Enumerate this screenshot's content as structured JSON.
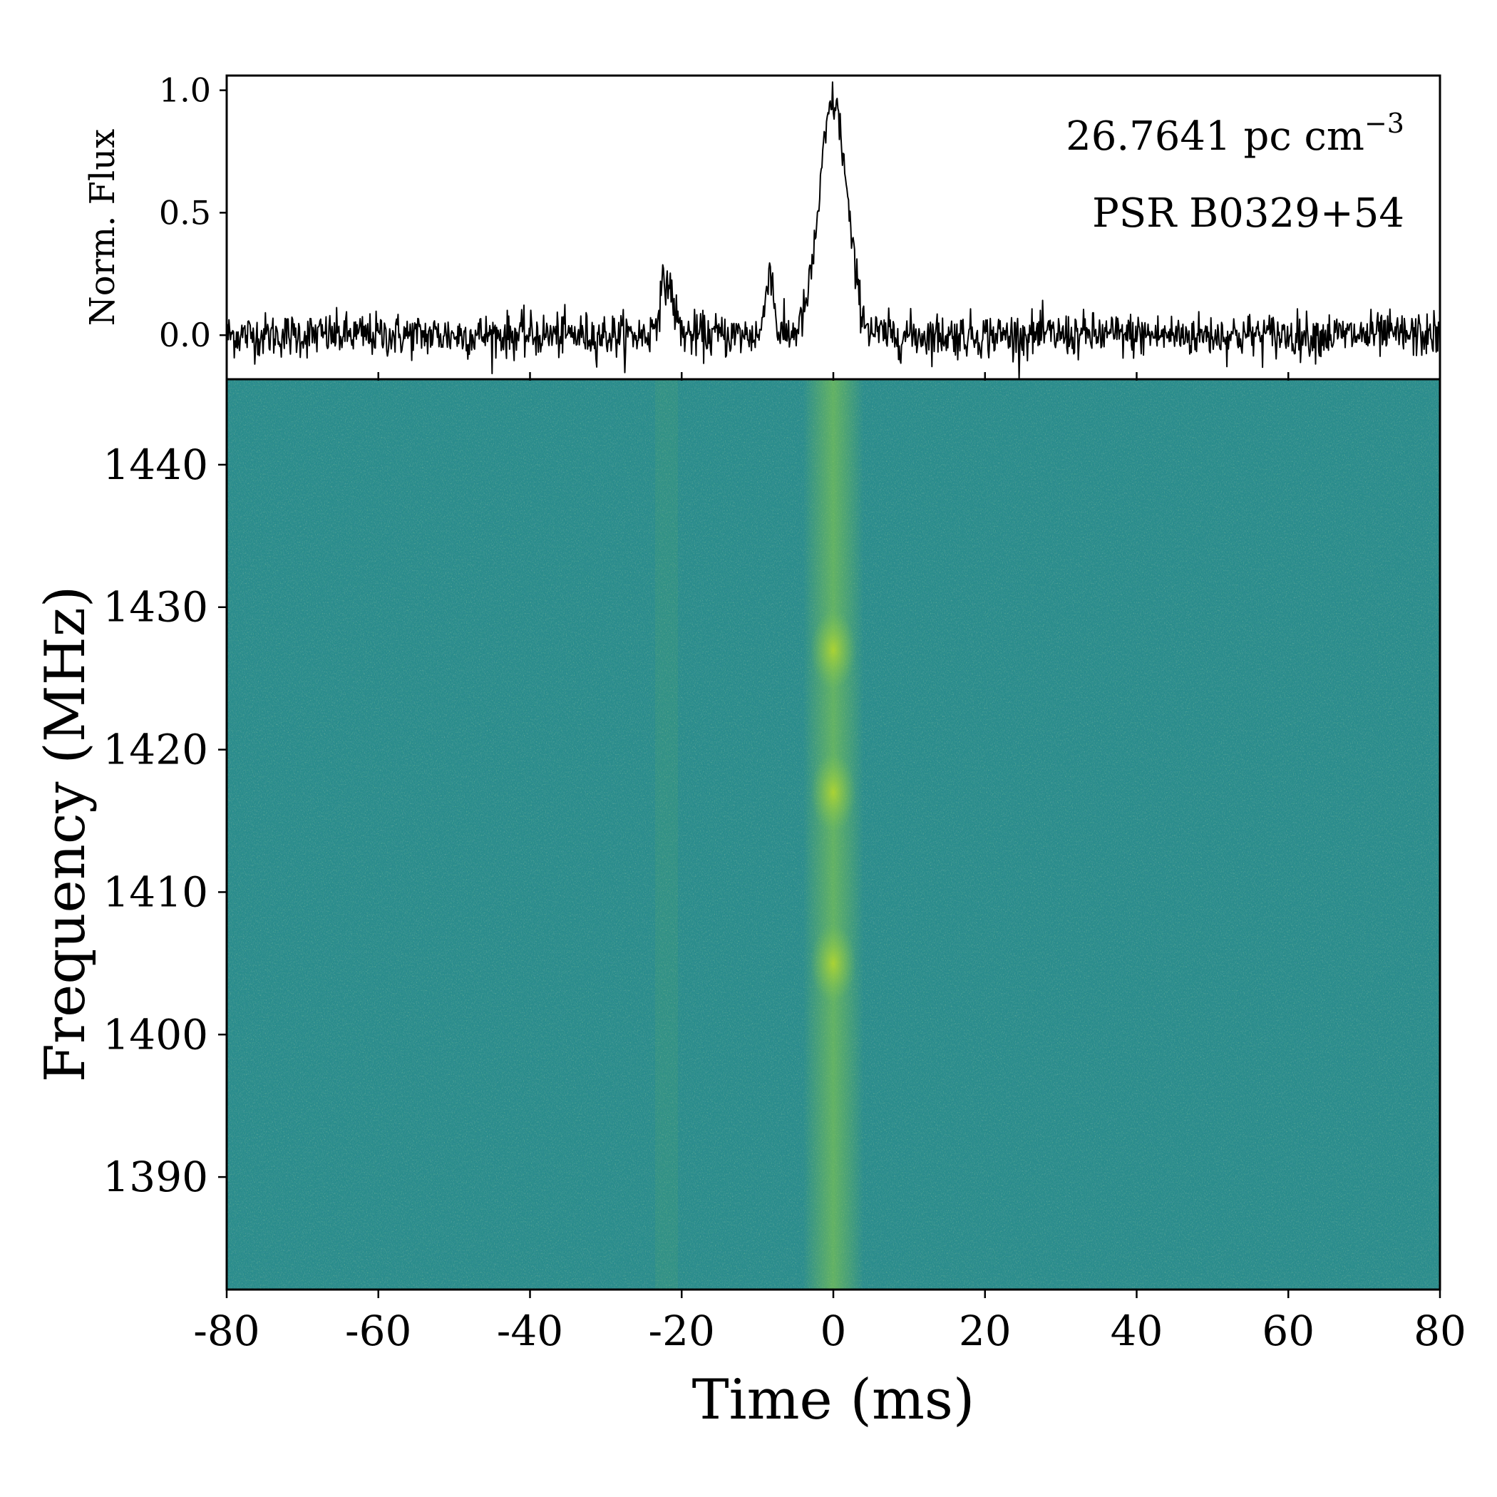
{
  "chart_data": [
    {
      "type": "line",
      "panel": "top",
      "title": "",
      "xlabel": "",
      "ylabel": "Norm. Flux",
      "xlim": [
        -80,
        80
      ],
      "ylim": [
        -0.18,
        1.06
      ],
      "yticks": [
        0.0,
        0.5,
        1.0
      ],
      "ytick_labels": [
        "0.0",
        "0.5",
        "1.0"
      ],
      "annotations": {
        "dm_value": "26.7641 pc cm",
        "dm_superscript": "−3",
        "source": "PSR B0329+54"
      },
      "components": [
        {
          "center_ms": 0.0,
          "amplitude": 0.95,
          "width_ms": 1.8
        },
        {
          "center_ms": -22.0,
          "amplitude": 0.22,
          "width_ms": 0.9
        },
        {
          "center_ms": -8.4,
          "amplitude": 0.28,
          "width_ms": 0.5
        }
      ],
      "noise_sigma": 0.045
    },
    {
      "type": "heatmap",
      "panel": "bottom",
      "title": "",
      "xlabel": "Time (ms)",
      "ylabel": "Frequency (MHz)",
      "xlim": [
        -80,
        80
      ],
      "ylim": [
        1382.1,
        1446.0
      ],
      "xticks": [
        -80,
        -60,
        -40,
        -20,
        0,
        20,
        40,
        60,
        80
      ],
      "xtick_labels": [
        "-80",
        "-60",
        "-40",
        "-20",
        "0",
        "20",
        "40",
        "60",
        "80"
      ],
      "yticks": [
        1390,
        1400,
        1410,
        1420,
        1430,
        1440
      ],
      "ytick_labels": [
        "1390",
        "1400",
        "1410",
        "1420",
        "1430",
        "1440"
      ],
      "colormap": "viridis",
      "background_color": "#2a8c8c",
      "pulse_color": "#8fd044",
      "bright_frequencies_mhz": [
        1405,
        1417,
        1427
      ]
    }
  ]
}
